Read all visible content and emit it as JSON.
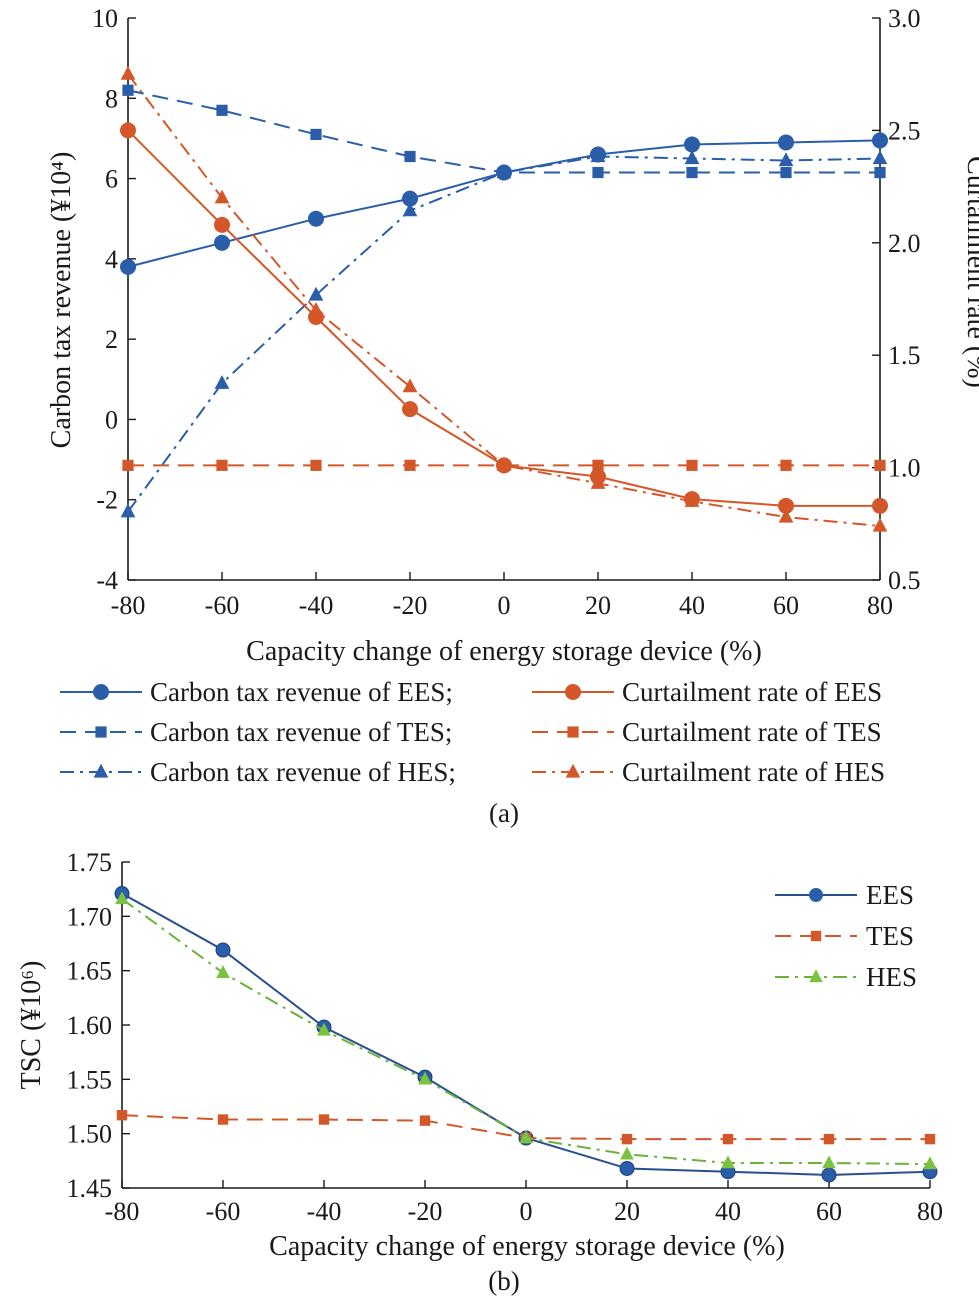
{
  "colors": {
    "blue": "#2a5ea8",
    "orange": "#d4572a",
    "green": "#7cc242",
    "axis": "#1a1a1a"
  },
  "chart_data": [
    {
      "panel": "(a)",
      "type": "line",
      "x": [
        -80,
        -60,
        -40,
        -20,
        0,
        20,
        40,
        60,
        80
      ],
      "xlabel": "Capacity change of energy storage device (%)",
      "ylabel_left": "Carbon tax revenue (¥10⁴)",
      "ylabel_right": "Curtailment rate (%)",
      "xlim": [
        -80,
        80
      ],
      "ylim_left": [
        -4,
        10
      ],
      "ylim_right": [
        0.5,
        3.0
      ],
      "xticks": [
        "-80",
        "-60",
        "-40",
        "-20",
        "0",
        "20",
        "40",
        "60",
        "80"
      ],
      "yticks_left": [
        "10",
        "8",
        "6",
        "4",
        "2",
        "0",
        "-2",
        "-4"
      ],
      "yticks_right": [
        "3.0",
        "2.5",
        "2.0",
        "1.5",
        "1.0",
        "0.5"
      ],
      "legend_location": "bottom",
      "legend_entries": [
        "Carbon tax revenue of EES;",
        "Curtailment rate of EES",
        "Carbon tax revenue of TES;",
        "Curtailment rate of TES",
        "Carbon tax revenue of HES;",
        "Curtailment rate of HES"
      ],
      "series": [
        {
          "name": "Carbon tax revenue of EES;",
          "axis": "left",
          "color": "blue",
          "line": "solid",
          "marker": "circle",
          "values": [
            3.8,
            4.4,
            5.0,
            5.5,
            6.15,
            6.6,
            6.85,
            6.9,
            6.95
          ]
        },
        {
          "name": "Carbon tax revenue of TES;",
          "axis": "left",
          "color": "blue",
          "line": "dash",
          "marker": "square",
          "values": [
            8.2,
            7.7,
            7.1,
            6.55,
            6.15,
            6.15,
            6.15,
            6.15,
            6.15
          ]
        },
        {
          "name": "Carbon tax revenue of HES;",
          "axis": "left",
          "color": "blue",
          "line": "dashdot",
          "marker": "triangle",
          "values": [
            -2.3,
            0.9,
            3.1,
            5.2,
            6.15,
            6.55,
            6.5,
            6.45,
            6.5
          ]
        },
        {
          "name": "Curtailment rate of EES",
          "axis": "right",
          "color": "orange",
          "line": "solid",
          "marker": "circle",
          "values": [
            2.5,
            2.08,
            1.67,
            1.26,
            1.01,
            0.96,
            0.86,
            0.83,
            0.83
          ]
        },
        {
          "name": "Curtailment rate of TES",
          "axis": "right",
          "color": "orange",
          "line": "dash",
          "marker": "square",
          "values": [
            1.01,
            1.01,
            1.01,
            1.01,
            1.01,
            1.01,
            1.01,
            1.01,
            1.01
          ]
        },
        {
          "name": "Curtailment rate of HES",
          "axis": "right",
          "color": "orange",
          "line": "dashdot",
          "marker": "triangle",
          "values": [
            2.75,
            2.2,
            1.7,
            1.36,
            1.01,
            0.93,
            0.85,
            0.78,
            0.74
          ]
        }
      ]
    },
    {
      "panel": "(b)",
      "type": "line",
      "x": [
        -80,
        -60,
        -40,
        -20,
        0,
        20,
        40,
        60,
        80
      ],
      "xlabel": "Capacity change of energy storage device (%)",
      "ylabel": "TSC (¥10⁶)",
      "xlim": [
        -80,
        80
      ],
      "ylim": [
        1.45,
        1.75
      ],
      "xticks": [
        "-80",
        "-60",
        "-40",
        "-20",
        "0",
        "20",
        "40",
        "60",
        "80"
      ],
      "yticks": [
        "1.75",
        "1.70",
        "1.65",
        "1.60",
        "1.55",
        "1.50",
        "1.45"
      ],
      "legend_location": "top-right",
      "series": [
        {
          "name": "EES",
          "color": "blue",
          "line": "solid",
          "marker": "circle",
          "values": [
            1.721,
            1.669,
            1.598,
            1.552,
            1.496,
            1.468,
            1.465,
            1.462,
            1.465
          ]
        },
        {
          "name": "TES",
          "color": "orange",
          "line": "dash",
          "marker": "square",
          "values": [
            1.517,
            1.513,
            1.513,
            1.512,
            1.496,
            1.495,
            1.495,
            1.495,
            1.495
          ]
        },
        {
          "name": "HES",
          "color": "green",
          "line": "dashdot",
          "marker": "triangle",
          "values": [
            1.716,
            1.648,
            1.595,
            1.55,
            1.496,
            1.481,
            1.473,
            1.473,
            1.472
          ]
        }
      ]
    }
  ]
}
